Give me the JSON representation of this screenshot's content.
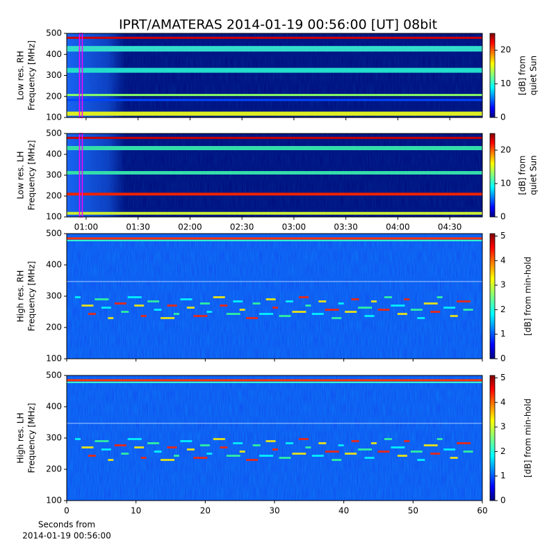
{
  "chart_data": [
    {
      "type": "heatmap",
      "title": "IPRT/AMATERAS 2014-01-19 00:56:00 [UT]   08bit",
      "ylabel": [
        "Low res. RH",
        "Frequency [MHz]"
      ],
      "ylim": [
        100,
        500
      ],
      "yticks": [
        100,
        200,
        300,
        400,
        500
      ],
      "xlim": [
        48.8,
        288.8
      ],
      "vline": {
        "value": 57,
        "color": "#ff00ff"
      },
      "colorbar": {
        "label": [
          "[dB] from",
          "quiet Sun"
        ],
        "clim": [
          0,
          25
        ],
        "cticks": [
          0,
          10,
          20
        ]
      }
    },
    {
      "type": "heatmap",
      "ylabel": [
        "Low res. LH",
        "Frequency [MHz]"
      ],
      "ylim": [
        100,
        500
      ],
      "yticks": [
        100,
        200,
        300,
        400,
        500
      ],
      "xlim": [
        48.8,
        288.8
      ],
      "xticks": [
        {
          "value": 60,
          "label": "01:00"
        },
        {
          "value": 90,
          "label": "01:30"
        },
        {
          "value": 120,
          "label": "02:00"
        },
        {
          "value": 150,
          "label": "02:30"
        },
        {
          "value": 180,
          "label": "03:00"
        },
        {
          "value": 210,
          "label": "03:30"
        },
        {
          "value": 240,
          "label": "04:00"
        },
        {
          "value": 270,
          "label": "04:30"
        }
      ],
      "vline": {
        "value": 57,
        "color": "#ff00ff"
      },
      "colorbar": {
        "label": [
          "[dB] from",
          "quiet Sun"
        ],
        "clim": [
          0,
          25
        ],
        "cticks": [
          0,
          10,
          20
        ]
      }
    },
    {
      "type": "heatmap",
      "ylabel": [
        "High res. RH",
        "Frequency [MHz]"
      ],
      "ylim": [
        100,
        500
      ],
      "yticks": [
        100,
        200,
        300,
        400,
        500
      ],
      "xlim": [
        0,
        60
      ],
      "colorbar": {
        "label": [
          "[dB] from min-hold"
        ],
        "clim": [
          0,
          5.1
        ],
        "cticks": [
          0,
          1,
          2,
          3,
          4,
          5
        ]
      }
    },
    {
      "type": "heatmap",
      "ylabel": [
        "High res. LH",
        "Frequency [MHz]"
      ],
      "ylim": [
        100,
        500
      ],
      "yticks": [
        100,
        200,
        300,
        400,
        500
      ],
      "xlim": [
        0,
        60
      ],
      "xticks": [
        0,
        10,
        20,
        30,
        40,
        50,
        60
      ],
      "xlabel": [
        "Seconds from",
        "2014-01-19 00:56:00"
      ],
      "colorbar": {
        "label": [
          "[dB] from min-hold"
        ],
        "clim": [
          0,
          5.1
        ],
        "cticks": [
          0,
          1,
          2,
          3,
          4,
          5
        ]
      }
    }
  ]
}
